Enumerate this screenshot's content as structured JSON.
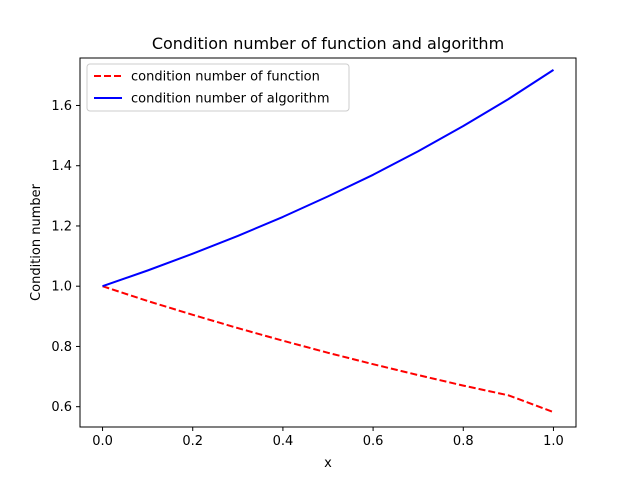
{
  "chart_data": {
    "type": "line",
    "title": "Condition number of function and algorithm",
    "xlabel": "x",
    "ylabel": "Condition number",
    "xlim": [
      -0.05,
      1.05
    ],
    "ylim": [
      0.5326,
      1.7576
    ],
    "x_ticks": [
      0.0,
      0.2,
      0.4,
      0.6,
      0.8,
      1.0
    ],
    "x_tick_labels": [
      "0.0",
      "0.2",
      "0.4",
      "0.6",
      "0.8",
      "1.0"
    ],
    "y_ticks": [
      0.6,
      0.8,
      1.0,
      1.2,
      1.4,
      1.6
    ],
    "y_tick_labels": [
      "0.6",
      "0.8",
      "1.0",
      "1.2",
      "1.4",
      "1.6"
    ],
    "grid": false,
    "legend_position": "upper-left",
    "x": [
      0.0,
      0.1,
      0.2,
      0.3,
      0.4,
      0.5,
      0.6,
      0.7,
      0.8,
      0.9,
      1.0
    ],
    "series": [
      {
        "name": "condition number of function",
        "color": "#ff0000",
        "style": "dashed",
        "values": [
          1.0,
          0.951,
          0.905,
          0.861,
          0.819,
          0.779,
          0.741,
          0.705,
          0.67,
          0.638,
          0.582
        ]
      },
      {
        "name": "condition number of algorithm",
        "color": "#0000ff",
        "style": "solid",
        "values": [
          1.0,
          1.052,
          1.108,
          1.167,
          1.23,
          1.298,
          1.37,
          1.448,
          1.532,
          1.621,
          1.718
        ]
      }
    ]
  }
}
